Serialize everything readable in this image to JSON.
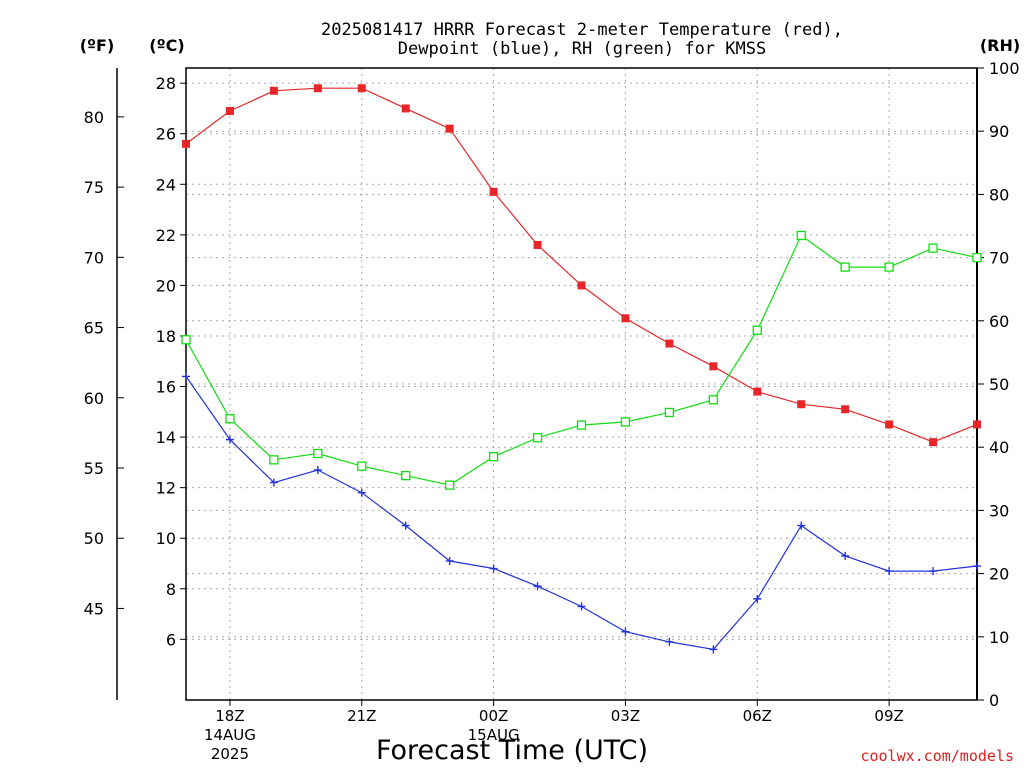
{
  "title_line1": "2025081417 HRRR Forecast 2-meter Temperature (red),",
  "title_line2": "Dewpoint (blue), RH (green) for KMSS",
  "unit_f": "(ºF)",
  "unit_c": "(ºC)",
  "unit_rh": "(RH)",
  "xlabel": "Forecast Time (UTC)",
  "credit": "coolwx.com/models",
  "colors": {
    "temperature": "#e8262a",
    "dewpoint": "#2233dd",
    "rh": "#11dd11",
    "grid": "#aaaaaa"
  },
  "chart_data": {
    "type": "line",
    "x_hours": [
      17,
      18,
      19,
      20,
      21,
      22,
      23,
      24,
      25,
      26,
      27,
      28,
      29,
      30,
      31,
      32,
      33,
      34,
      35
    ],
    "x_ticks": [
      {
        "hour": 18,
        "lines": [
          "18Z",
          "14AUG",
          "2025"
        ]
      },
      {
        "hour": 21,
        "lines": [
          "21Z"
        ]
      },
      {
        "hour": 24,
        "lines": [
          "00Z",
          "15AUG"
        ]
      },
      {
        "hour": 27,
        "lines": [
          "03Z"
        ]
      },
      {
        "hour": 30,
        "lines": [
          "06Z"
        ]
      },
      {
        "hour": 33,
        "lines": [
          "09Z"
        ]
      }
    ],
    "xlim": [
      17,
      35
    ],
    "ylim_c": [
      3.6,
      28.6
    ],
    "ylim_rh": [
      0,
      100
    ],
    "yticks_c": [
      6,
      8,
      10,
      12,
      14,
      16,
      18,
      20,
      22,
      24,
      26,
      28
    ],
    "yticks_f": [
      45,
      50,
      55,
      60,
      65,
      70,
      75,
      80
    ],
    "yticks_rh": [
      0,
      10,
      20,
      30,
      40,
      50,
      60,
      70,
      80,
      90,
      100
    ],
    "series": [
      {
        "name": "Temperature",
        "axis": "c",
        "marker": "filled-square",
        "values": [
          25.6,
          26.9,
          27.7,
          27.8,
          27.8,
          27.0,
          26.2,
          23.7,
          21.6,
          20.0,
          18.7,
          17.7,
          16.8,
          15.8,
          15.3,
          15.1,
          14.5,
          13.8,
          14.5
        ]
      },
      {
        "name": "Dewpoint",
        "axis": "c",
        "marker": "plus",
        "values": [
          16.4,
          13.9,
          12.2,
          12.7,
          11.8,
          10.5,
          9.1,
          8.8,
          8.1,
          7.3,
          6.3,
          5.9,
          5.6,
          7.6,
          10.5,
          9.3,
          8.7,
          8.7,
          8.9
        ]
      },
      {
        "name": "RH",
        "axis": "rh",
        "marker": "open-square",
        "values": [
          57,
          44.5,
          38,
          39,
          37,
          35.5,
          34,
          38.5,
          41.5,
          43.5,
          44,
          45.5,
          47.5,
          58.5,
          73.5,
          68.5,
          68.5,
          71.5,
          70
        ]
      }
    ]
  }
}
